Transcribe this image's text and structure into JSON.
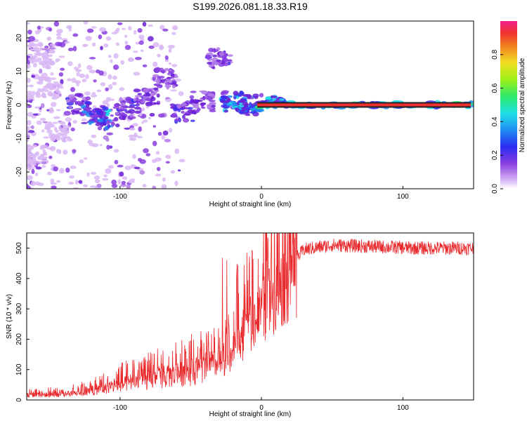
{
  "title": "S199.2026.081.18.33.R19",
  "colors": {
    "snr_line": "#e8282b",
    "scatter_palette": [
      "#f2e4fb",
      "#d9b8f5",
      "#b07ae6",
      "#8a3ee0",
      "#6a1fd6",
      "#3b2df0",
      "#1f8cf0",
      "#1fe0e8",
      "#2bea6a",
      "#d8f019",
      "#f0a020",
      "#f03030",
      "#f0208a"
    ],
    "background": "#ffffff"
  },
  "chart_data": [
    {
      "type": "heatmap",
      "name": "spectrum",
      "title": "S199.2026.081.18.33.R19",
      "xlabel": "Height of straight line (km)",
      "ylabel": "Frequency (Hz)",
      "xlim": [
        -166,
        150
      ],
      "ylim": [
        -25,
        25
      ],
      "xticks": [
        -100,
        0,
        100
      ],
      "yticks": [
        -20,
        -10,
        0,
        10,
        20
      ],
      "colorbar": {
        "label": "Normalized spectral amplitude",
        "range": [
          0,
          1
        ],
        "ticks": [
          0.0,
          0.2,
          0.4,
          0.6,
          0.8
        ]
      },
      "main_line": {
        "frequency": 0,
        "x_start": -28,
        "x_end": 150
      },
      "clusters": [
        {
          "x": -155,
          "y": 15,
          "amplitude": 0.1
        },
        {
          "x": -150,
          "y": 5,
          "amplitude": 0.1
        },
        {
          "x": -145,
          "y": -8,
          "amplitude": 0.1
        },
        {
          "x": -160,
          "y": -15,
          "amplitude": 0.1
        },
        {
          "x": -130,
          "y": 0,
          "amplitude": 0.3
        },
        {
          "x": -118,
          "y": -3,
          "amplitude": 0.4
        },
        {
          "x": -108,
          "y": -4,
          "amplitude": 0.45
        },
        {
          "x": -95,
          "y": -1,
          "amplitude": 0.35
        },
        {
          "x": -80,
          "y": 3,
          "amplitude": 0.3
        },
        {
          "x": -68,
          "y": 8,
          "amplitude": 0.25
        },
        {
          "x": -55,
          "y": -2,
          "amplitude": 0.35
        },
        {
          "x": -42,
          "y": 1,
          "amplitude": 0.3
        },
        {
          "x": -30,
          "y": 14,
          "amplitude": 0.3
        },
        {
          "x": -20,
          "y": 1,
          "amplitude": 0.45
        },
        {
          "x": -8,
          "y": 0,
          "amplitude": 0.4
        }
      ]
    },
    {
      "type": "line",
      "name": "snr",
      "xlabel": "Height of straight line (km)",
      "ylabel": "SNR (10 * v/v)",
      "xlim": [
        -166,
        150
      ],
      "ylim": [
        0,
        550
      ],
      "xticks": [
        -100,
        0,
        100
      ],
      "yticks": [
        0,
        100,
        200,
        300,
        400,
        500
      ],
      "envelope": {
        "x": [
          -166,
          -140,
          -120,
          -100,
          -80,
          -60,
          -40,
          -30,
          -20,
          -10,
          0,
          10,
          20,
          30,
          50,
          80,
          110,
          150
        ],
        "y": [
          18,
          20,
          30,
          55,
          70,
          90,
          110,
          130,
          150,
          250,
          310,
          380,
          440,
          495,
          510,
          505,
          500,
          500
        ]
      }
    }
  ]
}
